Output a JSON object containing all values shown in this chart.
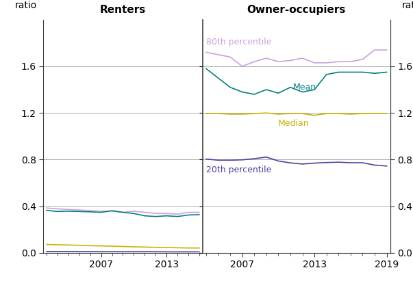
{
  "renters_years": [
    2002,
    2003,
    2004,
    2005,
    2006,
    2007,
    2008,
    2009,
    2010,
    2011,
    2012,
    2013,
    2014,
    2015,
    2016
  ],
  "renters_80th": [
    0.385,
    0.378,
    0.372,
    0.368,
    0.362,
    0.358,
    0.358,
    0.348,
    0.358,
    0.348,
    0.338,
    0.338,
    0.332,
    0.348,
    0.348
  ],
  "renters_mean": [
    0.365,
    0.355,
    0.358,
    0.355,
    0.352,
    0.348,
    0.362,
    0.348,
    0.338,
    0.318,
    0.312,
    0.318,
    0.312,
    0.325,
    0.328
  ],
  "renters_median": [
    0.072,
    0.07,
    0.068,
    0.065,
    0.062,
    0.06,
    0.058,
    0.055,
    0.052,
    0.05,
    0.048,
    0.046,
    0.044,
    0.042,
    0.042
  ],
  "renters_20th": [
    0.012,
    0.012,
    0.012,
    0.011,
    0.011,
    0.01,
    0.01,
    0.01,
    0.01,
    0.01,
    0.01,
    0.009,
    0.009,
    0.009,
    0.009
  ],
  "owners_years": [
    2004,
    2005,
    2006,
    2007,
    2008,
    2009,
    2010,
    2011,
    2012,
    2013,
    2014,
    2015,
    2016,
    2017,
    2018,
    2019
  ],
  "owners_80th": [
    1.72,
    1.7,
    1.68,
    1.6,
    1.64,
    1.67,
    1.64,
    1.65,
    1.67,
    1.63,
    1.63,
    1.64,
    1.64,
    1.66,
    1.74,
    1.74
  ],
  "owners_mean": [
    1.58,
    1.5,
    1.42,
    1.38,
    1.36,
    1.4,
    1.37,
    1.42,
    1.38,
    1.4,
    1.53,
    1.55,
    1.55,
    1.55,
    1.54,
    1.55
  ],
  "owners_median": [
    1.195,
    1.195,
    1.19,
    1.19,
    1.195,
    1.2,
    1.19,
    1.195,
    1.195,
    1.18,
    1.195,
    1.195,
    1.19,
    1.195,
    1.195,
    1.195
  ],
  "owners_20th": [
    0.805,
    0.795,
    0.795,
    0.798,
    0.808,
    0.822,
    0.788,
    0.772,
    0.762,
    0.77,
    0.775,
    0.778,
    0.773,
    0.773,
    0.753,
    0.745
  ],
  "color_80th": "#c9a0dc",
  "color_mean": "#008080",
  "color_median": "#c8b400",
  "color_20th": "#5040a0",
  "ylim": [
    0.0,
    2.0
  ],
  "yticks": [
    0.0,
    0.4,
    0.8,
    1.2,
    1.6
  ],
  "background": "#ffffff",
  "label_renters": "Renters",
  "label_owners": "Owner-occupiers",
  "ylabel": "ratio"
}
